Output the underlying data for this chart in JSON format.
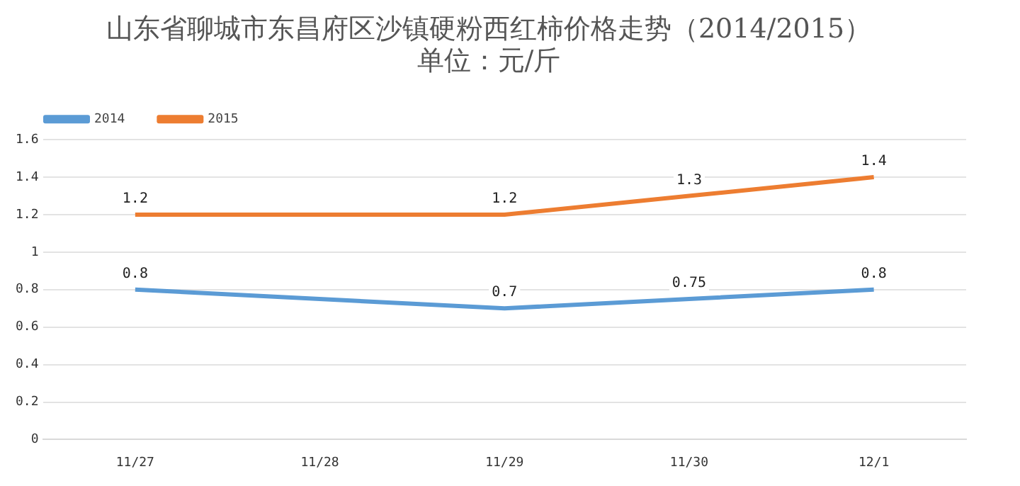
{
  "chart_data": {
    "type": "line",
    "title": "山东省聊城市东昌府区沙镇硬粉西红柿价格走势（2014/2015）",
    "subtitle": "单位：元/斤",
    "categories": [
      "11/27",
      "11/28",
      "11/29",
      "11/30",
      "12/1"
    ],
    "series": [
      {
        "name": "2014",
        "color": "#5b9bd5",
        "values": [
          0.8,
          null,
          0.7,
          0.75,
          0.8
        ]
      },
      {
        "name": "2015",
        "color": "#ed7d31",
        "values": [
          1.2,
          null,
          1.2,
          1.3,
          1.4
        ]
      }
    ],
    "ylim": [
      0,
      1.6
    ],
    "yticks": [
      0,
      0.2,
      0.4,
      0.6,
      0.8,
      1,
      1.2,
      1.4,
      1.6
    ],
    "grid": "y",
    "legend": "top left",
    "marker": "none",
    "line_style": "solid",
    "data_labels": true
  }
}
